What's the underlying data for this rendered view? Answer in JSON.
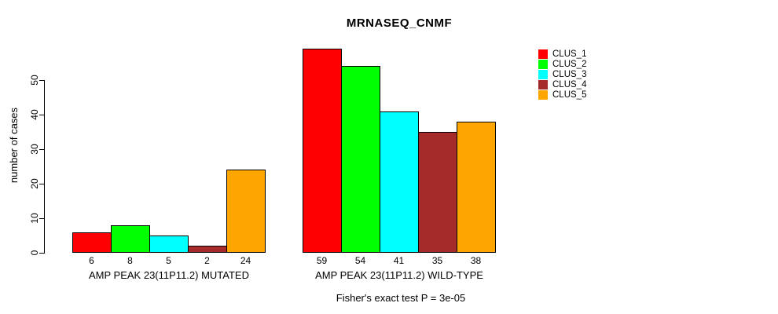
{
  "chart_data": {
    "type": "bar",
    "title": "MRNASEQ_CNMF",
    "ylabel": "number of cases",
    "xlabel": "",
    "yticks": [
      0,
      10,
      20,
      30,
      40,
      50
    ],
    "ylim": [
      0,
      59
    ],
    "grid": false,
    "legend_position": "right",
    "bar_value_labels_shown": true,
    "categories": [
      "AMP PEAK 23(11P11.2) MUTATED",
      "AMP PEAK 23(11P11.2) WILD-TYPE"
    ],
    "series": [
      {
        "name": "CLUS_1",
        "color": "#FF0000",
        "values": [
          6,
          59
        ]
      },
      {
        "name": "CLUS_2",
        "color": "#00FF00",
        "values": [
          8,
          54
        ]
      },
      {
        "name": "CLUS_3",
        "color": "#00FFFF",
        "values": [
          5,
          41
        ]
      },
      {
        "name": "CLUS_4",
        "color": "#A52A2A",
        "values": [
          2,
          35
        ]
      },
      {
        "name": "CLUS_5",
        "color": "#FFA500",
        "values": [
          24,
          38
        ]
      }
    ],
    "annotation": "Fisher's exact test P = 3e-05"
  },
  "colors": {
    "background": "#FFFFFF",
    "axis": "#000000",
    "text": "#000000"
  }
}
